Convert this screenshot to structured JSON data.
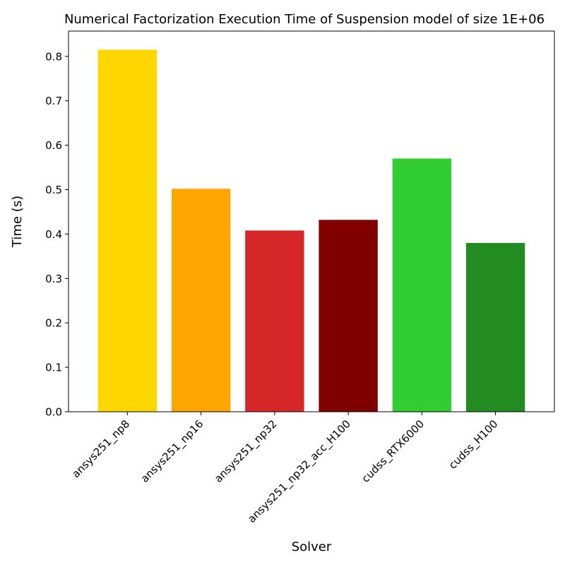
{
  "chart_data": {
    "type": "bar",
    "title": "Numerical Factorization Execution Time of Suspension model of size 1E+06",
    "xlabel": "Solver",
    "ylabel": "Time (s)",
    "categories": [
      "ansys251_np8",
      "ansys251_np16",
      "ansys251_np32",
      "ansys251_np32_acc_H100",
      "cudss_RTX6000",
      "cudss_H100"
    ],
    "values": [
      0.815,
      0.502,
      0.408,
      0.432,
      0.57,
      0.38
    ],
    "colors": [
      "#FFD700",
      "#FFA500",
      "#D62728",
      "#800000",
      "#32CD32",
      "#228B22"
    ],
    "ylim": [
      0,
      0.857
    ],
    "yticks": [
      "0.0",
      "0.1",
      "0.2",
      "0.3",
      "0.4",
      "0.5",
      "0.6",
      "0.7",
      "0.8"
    ],
    "grid": false,
    "legend": "none"
  }
}
